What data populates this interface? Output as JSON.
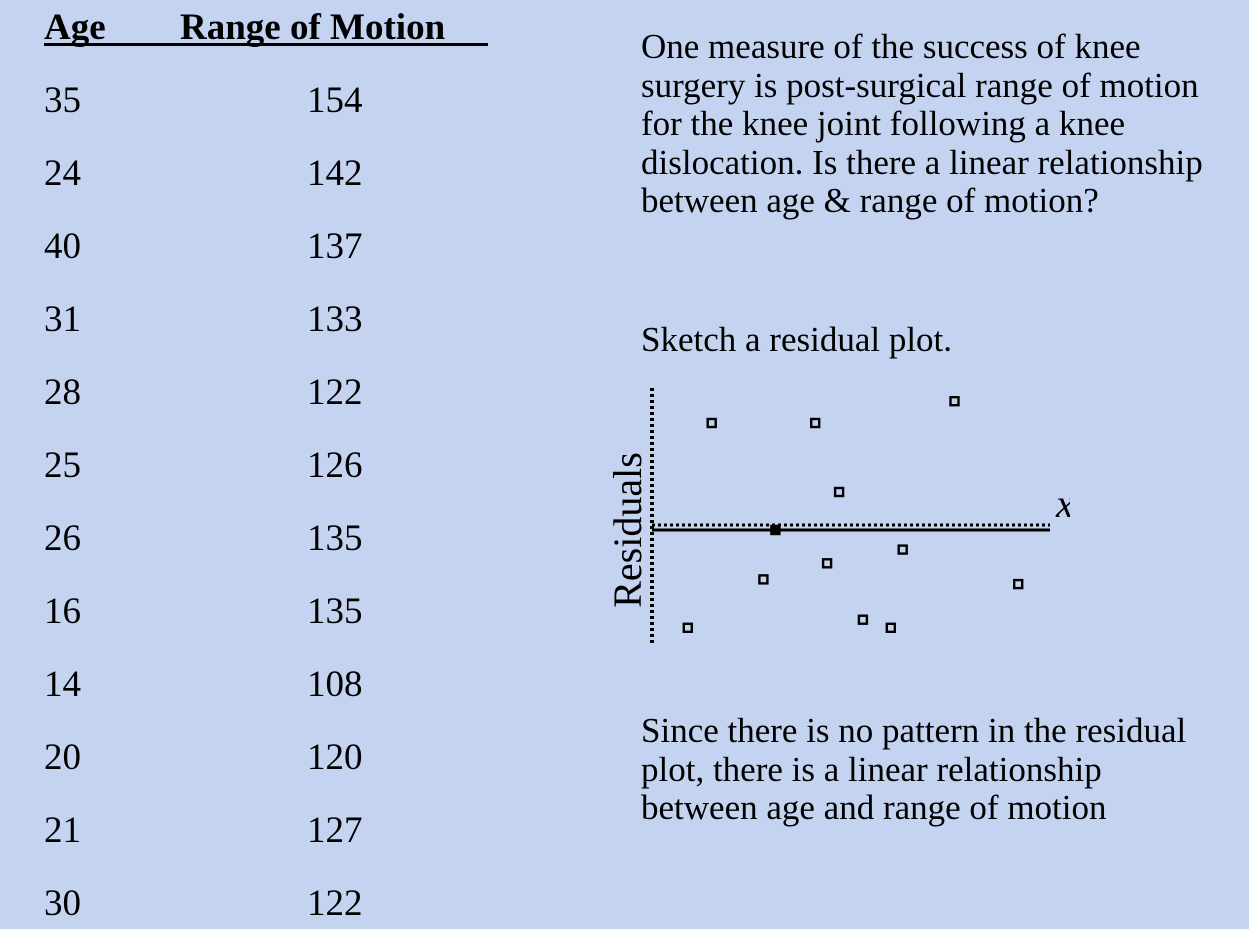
{
  "table": {
    "headers": {
      "age": "Age",
      "range_of_motion": "Range of Motion"
    },
    "rows": [
      {
        "age": "35",
        "rom": "154"
      },
      {
        "age": "24",
        "rom": "142"
      },
      {
        "age": "40",
        "rom": "137"
      },
      {
        "age": "31",
        "rom": "133"
      },
      {
        "age": "28",
        "rom": "122"
      },
      {
        "age": "25",
        "rom": "126"
      },
      {
        "age": "26",
        "rom": "135"
      },
      {
        "age": "16",
        "rom": "135"
      },
      {
        "age": "14",
        "rom": "108"
      },
      {
        "age": "20",
        "rom": "120"
      },
      {
        "age": "21",
        "rom": "127"
      },
      {
        "age": "30",
        "rom": "122"
      }
    ]
  },
  "question": "One measure of the success of knee surgery is post-surgical range of motion for the knee joint following a knee dislocation. Is there a linear relationship between age & range of motion?",
  "instruction": "Sketch a residual plot.",
  "residual_plot": {
    "ylabel": "Residuals",
    "xlabel": "x",
    "points": [
      {
        "x": 0.09,
        "y": -0.85
      },
      {
        "x": 0.15,
        "y": 0.93
      },
      {
        "x": 0.31,
        "y": 0.0
      },
      {
        "x": 0.28,
        "y": -0.43
      },
      {
        "x": 0.41,
        "y": 0.93
      },
      {
        "x": 0.47,
        "y": 0.33
      },
      {
        "x": 0.44,
        "y": -0.29
      },
      {
        "x": 0.53,
        "y": -0.78
      },
      {
        "x": 0.6,
        "y": -0.85
      },
      {
        "x": 0.63,
        "y": -0.17
      },
      {
        "x": 0.76,
        "y": 1.12
      },
      {
        "x": 0.92,
        "y": -0.47
      }
    ]
  },
  "conclusion": "Since there is no pattern in the residual plot, there is a linear relationship between age and range of motion"
}
